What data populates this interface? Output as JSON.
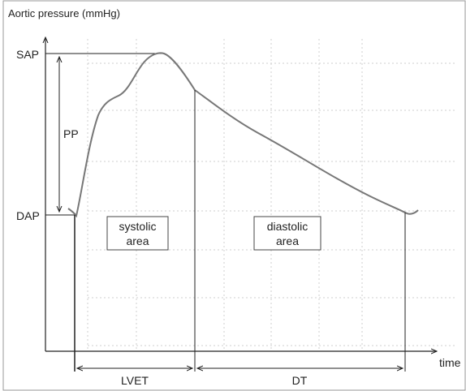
{
  "diagram": {
    "y_axis_title": "Aortic pressure (mmHg)",
    "x_axis_title": "time",
    "levels": {
      "sap": "SAP",
      "dap": "DAP",
      "pp": "PP"
    },
    "areas": {
      "systolic_line1": "systolic",
      "systolic_line2": "area",
      "diastolic_line1": "diastolic",
      "diastolic_line2": "area"
    },
    "intervals": {
      "lvet": "LVET",
      "dt": "DT"
    }
  }
}
